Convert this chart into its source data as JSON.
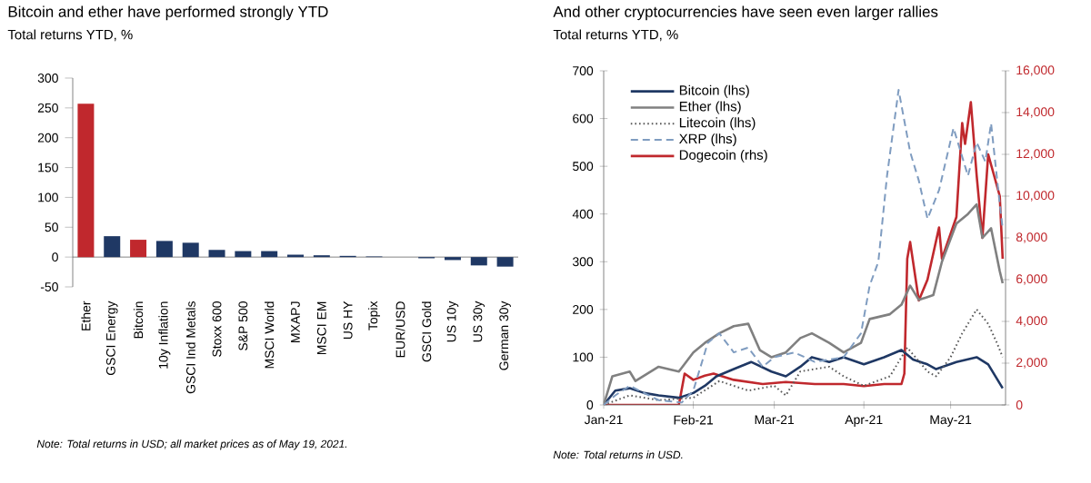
{
  "chart_data": [
    {
      "type": "bar",
      "title": "Bitcoin and ether have performed strongly YTD",
      "subtitle": "Total returns YTD, %",
      "categories": [
        "Ether",
        "GSCI Energy",
        "Bitcoin",
        "10y Inflation",
        "GSCI Ind Metals",
        "Stoxx 600",
        "S&P 500",
        "MSCI World",
        "MXAPJ",
        "MSCI EM",
        "US HY",
        "Topix",
        "EUR/USD",
        "GSCI Gold",
        "US 10y",
        "US 30y",
        "German 30y"
      ],
      "values": [
        257,
        35,
        29,
        27,
        24,
        12,
        10,
        10,
        4,
        3,
        2,
        1,
        0,
        -2,
        -5,
        -14,
        -16
      ],
      "colors": [
        "#c0282d",
        "#1f3864",
        "#c0282d",
        "#1f3864",
        "#1f3864",
        "#1f3864",
        "#1f3864",
        "#1f3864",
        "#1f3864",
        "#1f3864",
        "#1f3864",
        "#1f3864",
        "#1f3864",
        "#1f3864",
        "#1f3864",
        "#1f3864",
        "#1f3864"
      ],
      "ylim": [
        -50,
        300
      ],
      "yticks": [
        -50,
        0,
        50,
        100,
        150,
        200,
        250,
        300
      ],
      "annotations": [
        "Note: Total returns in USD; all market prices as of May 19, 2021."
      ]
    },
    {
      "type": "line",
      "title": "And other cryptocurrencies have seen even larger rallies",
      "subtitle": "Total returns YTD, %",
      "xlim": [
        "2021-01-01",
        "2021-05-20"
      ],
      "xticks": [
        {
          "value": "2021-01-01",
          "label": "Jan-21"
        },
        {
          "value": "2021-02-01",
          "label": "Feb-21"
        },
        {
          "value": "2021-03-01",
          "label": "Mar-21"
        },
        {
          "value": "2021-04-01",
          "label": "Apr-21"
        },
        {
          "value": "2021-05-01",
          "label": "May-21"
        }
      ],
      "ylim": [
        0,
        700
      ],
      "yticks": [
        0,
        100,
        200,
        300,
        400,
        500,
        600,
        700
      ],
      "y2lim": [
        0,
        16000
      ],
      "y2ticks": [
        0,
        {
          "value": 2000,
          "label": "2,000"
        },
        {
          "value": 4000,
          "label": "4,000"
        },
        {
          "value": 6000,
          "label": "6,000"
        },
        {
          "value": 8000,
          "label": "8,000"
        },
        {
          "value": 10000,
          "label": "10,000"
        },
        {
          "value": 12000,
          "label": "12,000"
        },
        {
          "value": 14000,
          "label": "14,000"
        },
        {
          "value": 16000,
          "label": "16,000"
        }
      ],
      "legend": "top left",
      "series": [
        {
          "name": "Bitcoin (lhs)",
          "color": "#1f3864",
          "line_style": "solid",
          "x": [
            "2021-01-01",
            "2021-01-05",
            "2021-01-10",
            "2021-01-15",
            "2021-01-20",
            "2021-01-27",
            "2021-02-01",
            "2021-02-05",
            "2021-02-09",
            "2021-02-15",
            "2021-02-21",
            "2021-02-28",
            "2021-03-05",
            "2021-03-10",
            "2021-03-14",
            "2021-03-20",
            "2021-03-25",
            "2021-04-01",
            "2021-04-08",
            "2021-04-14",
            "2021-04-18",
            "2021-04-23",
            "2021-04-26",
            "2021-05-03",
            "2021-05-10",
            "2021-05-14",
            "2021-05-17",
            "2021-05-19"
          ],
          "values": [
            0,
            30,
            35,
            25,
            20,
            15,
            25,
            40,
            60,
            75,
            90,
            70,
            60,
            80,
            100,
            90,
            100,
            85,
            100,
            115,
            95,
            85,
            75,
            90,
            100,
            85,
            55,
            35
          ]
        },
        {
          "name": "Ether (lhs)",
          "color": "#808080",
          "line_style": "solid",
          "x": [
            "2021-01-01",
            "2021-01-04",
            "2021-01-10",
            "2021-01-12",
            "2021-01-20",
            "2021-01-27",
            "2021-02-01",
            "2021-02-05",
            "2021-02-10",
            "2021-02-15",
            "2021-02-20",
            "2021-02-24",
            "2021-02-28",
            "2021-03-05",
            "2021-03-10",
            "2021-03-14",
            "2021-03-20",
            "2021-03-25",
            "2021-03-31",
            "2021-04-03",
            "2021-04-10",
            "2021-04-14",
            "2021-04-17",
            "2021-04-20",
            "2021-04-25",
            "2021-04-28",
            "2021-05-03",
            "2021-05-07",
            "2021-05-10",
            "2021-05-12",
            "2021-05-15",
            "2021-05-18",
            "2021-05-19"
          ],
          "values": [
            0,
            60,
            70,
            50,
            80,
            70,
            110,
            130,
            150,
            165,
            170,
            115,
            100,
            110,
            140,
            150,
            130,
            110,
            130,
            180,
            190,
            210,
            250,
            220,
            230,
            300,
            380,
            400,
            420,
            350,
            370,
            280,
            255
          ]
        },
        {
          "name": "Litecoin (lhs)",
          "color": "#595959",
          "line_style": "dotted",
          "x": [
            "2021-01-01",
            "2021-01-10",
            "2021-01-20",
            "2021-02-01",
            "2021-02-10",
            "2021-02-20",
            "2021-03-01",
            "2021-03-05",
            "2021-03-10",
            "2021-03-20",
            "2021-03-25",
            "2021-04-01",
            "2021-04-10",
            "2021-04-16",
            "2021-04-23",
            "2021-04-26",
            "2021-05-01",
            "2021-05-05",
            "2021-05-10",
            "2021-05-14",
            "2021-05-17",
            "2021-05-19"
          ],
          "values": [
            0,
            20,
            10,
            15,
            50,
            30,
            40,
            20,
            70,
            80,
            60,
            40,
            60,
            120,
            70,
            60,
            100,
            150,
            200,
            170,
            130,
            100
          ]
        },
        {
          "name": "XRP (lhs)",
          "color": "#7f9cc0",
          "line_style": "dashed",
          "x": [
            "2021-01-01",
            "2021-01-05",
            "2021-01-10",
            "2021-01-20",
            "2021-01-28",
            "2021-02-01",
            "2021-02-06",
            "2021-02-10",
            "2021-02-15",
            "2021-02-20",
            "2021-02-25",
            "2021-03-01",
            "2021-03-08",
            "2021-03-15",
            "2021-03-25",
            "2021-03-31",
            "2021-04-03",
            "2021-04-06",
            "2021-04-09",
            "2021-04-13",
            "2021-04-17",
            "2021-04-20",
            "2021-04-23",
            "2021-04-27",
            "2021-05-02",
            "2021-05-07",
            "2021-05-10",
            "2021-05-13",
            "2021-05-15",
            "2021-05-18",
            "2021-05-19"
          ],
          "values": [
            0,
            20,
            40,
            10,
            5,
            30,
            130,
            150,
            110,
            120,
            80,
            100,
            110,
            90,
            100,
            150,
            250,
            300,
            480,
            660,
            530,
            470,
            390,
            450,
            580,
            480,
            550,
            510,
            590,
            420,
            370
          ]
        },
        {
          "name": "Dogecoin (rhs)",
          "color": "#c0282d",
          "line_style": "solid",
          "axis": "y2",
          "x": [
            "2021-01-01",
            "2021-01-27",
            "2021-01-29",
            "2021-02-01",
            "2021-02-05",
            "2021-02-08",
            "2021-02-15",
            "2021-02-25",
            "2021-03-05",
            "2021-03-15",
            "2021-03-25",
            "2021-04-01",
            "2021-04-08",
            "2021-04-14",
            "2021-04-15",
            "2021-04-16",
            "2021-04-17",
            "2021-04-20",
            "2021-04-23",
            "2021-04-27",
            "2021-04-28",
            "2021-05-03",
            "2021-05-05",
            "2021-05-06",
            "2021-05-08",
            "2021-05-10",
            "2021-05-12",
            "2021-05-14",
            "2021-05-16",
            "2021-05-18",
            "2021-05-19"
          ],
          "values": [
            0,
            0,
            1500,
            1200,
            1400,
            1500,
            1200,
            1000,
            1100,
            1000,
            1000,
            900,
            1000,
            1000,
            1500,
            7000,
            7800,
            5000,
            6000,
            8500,
            7000,
            9000,
            13500,
            12500,
            14500,
            11000,
            8000,
            12000,
            11000,
            10000,
            7000
          ]
        }
      ],
      "annotations": [
        "Note: Total returns in USD."
      ]
    }
  ]
}
